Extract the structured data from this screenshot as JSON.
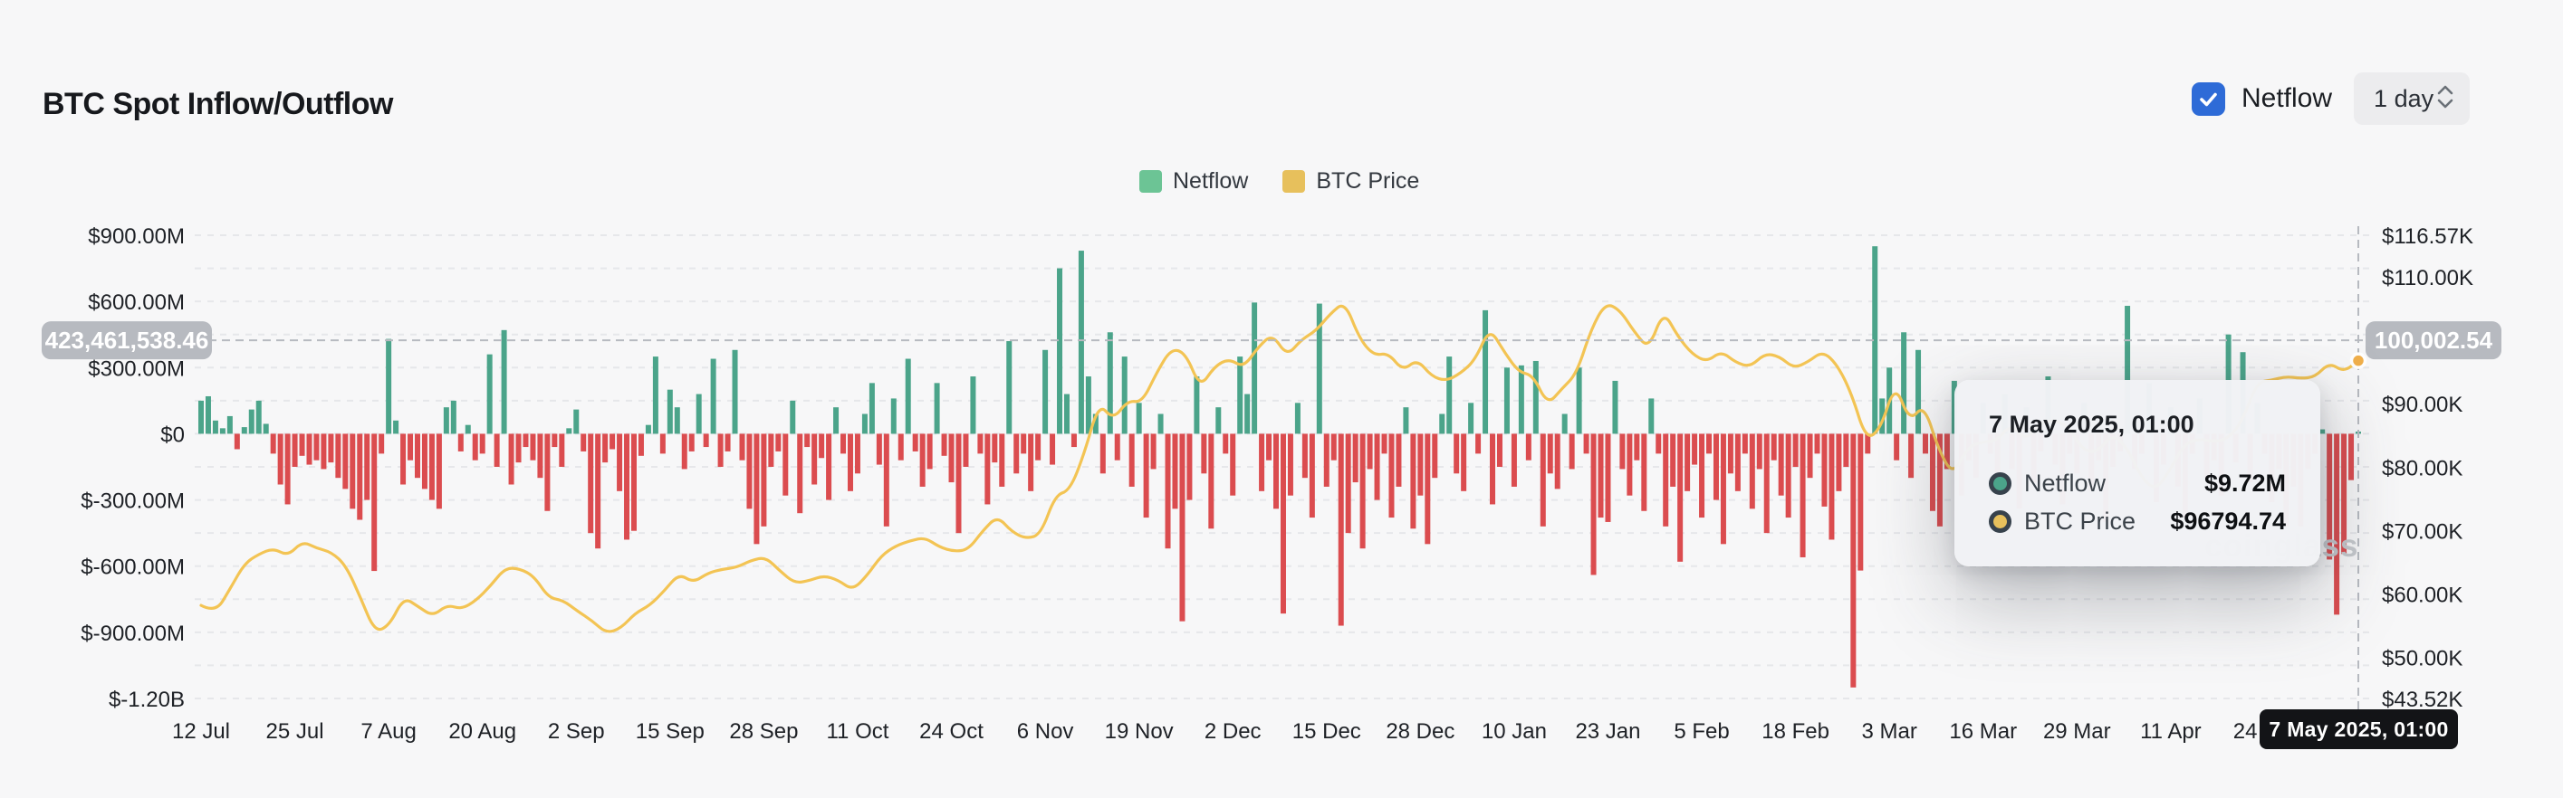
{
  "header": {
    "title": "BTC Spot Inflow/Outflow",
    "netflow_label": "Netflow",
    "interval_value": "1 day"
  },
  "legend": [
    {
      "label": "Netflow",
      "color": "#6CC495"
    },
    {
      "label": "BTC Price",
      "color": "#E7C05C"
    }
  ],
  "colors": {
    "background": "#f7f7f8",
    "gridline": "#e6e7ea",
    "bar_positive": "#4BA48A",
    "bar_negative": "#DB4C4F",
    "price_line": "#F3C454",
    "price_dot": "#F0AF4B",
    "axis_text": "#1e2126",
    "crosshair": "#b7bac0",
    "crosshair_badge_bg": "#b7bac0",
    "checkbox_blue": "#2E6BD7",
    "tooltip_marker_ring": "#37424c"
  },
  "chart_data": {
    "type": "bar+line",
    "title": "BTC Spot Inflow/Outflow",
    "legend_entries": [
      "Netflow",
      "BTC Price"
    ],
    "x_axis_labels": [
      "12 Jul",
      "25 Jul",
      "7 Aug",
      "20 Aug",
      "2 Sep",
      "15 Sep",
      "28 Sep",
      "11 Oct",
      "24 Oct",
      "6 Nov",
      "19 Nov",
      "2 Dec",
      "15 Dec",
      "28 Dec",
      "10 Jan",
      "23 Jan",
      "5 Feb",
      "18 Feb",
      "3 Mar",
      "16 Mar",
      "29 Mar",
      "11 Apr",
      "24 Apr",
      "7 May"
    ],
    "left_axis": {
      "unit": "USD",
      "labels": [
        {
          "text": "$900.00M",
          "value": 900
        },
        {
          "text": "$600.00M",
          "value": 600
        },
        {
          "text": "$300.00M",
          "value": 300
        },
        {
          "text": "$0",
          "value": 0
        },
        {
          "text": "$-300.00M",
          "value": -300
        },
        {
          "text": "$-600.00M",
          "value": -600
        },
        {
          "text": "$-900.00M",
          "value": -900
        },
        {
          "text": "$-1.20B",
          "value": -1200
        }
      ],
      "max": 900,
      "min": -1200,
      "gridline_step": 150
    },
    "right_axis": {
      "unit": "USD (K)",
      "labels": [
        {
          "text": "$116.57K",
          "value": 116.57
        },
        {
          "text": "$110.00K",
          "value": 110
        },
        {
          "text": "$90.00K",
          "value": 90
        },
        {
          "text": "$80.00K",
          "value": 80
        },
        {
          "text": "$70.00K",
          "value": 70
        },
        {
          "text": "$60.00K",
          "value": 60
        },
        {
          "text": "$50.00K",
          "value": 50
        },
        {
          "text": "$43.52K",
          "value": 43.52
        }
      ],
      "max": 116.57,
      "min": 43.52
    },
    "series": [
      {
        "name": "Netflow",
        "type": "bar",
        "unit": "million USD",
        "values": [
          150,
          170,
          60,
          25,
          80,
          -70,
          30,
          110,
          150,
          45,
          -90,
          -230,
          -320,
          -150,
          -100,
          -140,
          -120,
          -160,
          -130,
          -200,
          -250,
          -340,
          -390,
          -300,
          -622,
          -90,
          430,
          60,
          -230,
          -120,
          -200,
          -250,
          -300,
          -340,
          120,
          150,
          -80,
          40,
          -120,
          -90,
          360,
          -150,
          470,
          -230,
          -130,
          -60,
          -120,
          -200,
          -350,
          -60,
          -150,
          25,
          110,
          -80,
          -450,
          -520,
          -130,
          -70,
          -260,
          -480,
          -440,
          -100,
          40,
          350,
          -90,
          200,
          120,
          -160,
          -80,
          180,
          -60,
          340,
          -150,
          -80,
          380,
          -120,
          -340,
          -500,
          -420,
          -150,
          -80,
          -280,
          150,
          -360,
          -60,
          -230,
          -110,
          -300,
          120,
          -90,
          -260,
          -180,
          90,
          230,
          -140,
          -420,
          160,
          -120,
          340,
          -80,
          -240,
          -160,
          230,
          -100,
          -220,
          -450,
          -150,
          260,
          -90,
          -320,
          -130,
          -240,
          420,
          -180,
          -90,
          -260,
          -120,
          380,
          -140,
          750,
          180,
          -60,
          830,
          260,
          90,
          -180,
          460,
          -120,
          350,
          -240,
          140,
          -380,
          -160,
          90,
          -520,
          -340,
          -850,
          -300,
          260,
          -180,
          -430,
          120,
          -90,
          -280,
          350,
          180,
          595,
          -260,
          -120,
          -340,
          -815,
          -280,
          140,
          -200,
          -380,
          590,
          -240,
          -120,
          -870,
          -450,
          -220,
          -520,
          -160,
          -300,
          -90,
          -380,
          -240,
          120,
          -430,
          -280,
          -500,
          -200,
          90,
          350,
          -180,
          -260,
          140,
          -90,
          560,
          -320,
          -150,
          300,
          -240,
          310,
          -120,
          330,
          -420,
          -180,
          -250,
          90,
          -160,
          300,
          -90,
          -640,
          -380,
          -400,
          240,
          -160,
          -280,
          -120,
          -350,
          160,
          -90,
          -420,
          -240,
          -580,
          -260,
          -140,
          -380,
          -90,
          -300,
          -500,
          -180,
          -260,
          -90,
          -340,
          -160,
          -450,
          -120,
          -280,
          -380,
          -150,
          -560,
          -200,
          -90,
          -330,
          -480,
          -260,
          -150,
          -1150,
          -620,
          -90,
          850,
          160,
          300,
          -120,
          460,
          -200,
          380,
          -90,
          -350,
          -420,
          -160,
          240,
          -280,
          -120,
          -200,
          140,
          -90,
          -260,
          180,
          -160,
          -340,
          120,
          -220,
          -80,
          260,
          -140,
          -320,
          -90,
          -180,
          140,
          -260,
          -120,
          -400,
          -150,
          -80,
          580,
          -160,
          -90,
          230,
          -310,
          -140,
          120,
          -240,
          -380,
          -90,
          160,
          -200,
          -120,
          -280,
          450,
          -130,
          370,
          -220,
          140,
          -90,
          -310,
          -160,
          -420,
          -240,
          -420,
          -160,
          -90,
          20,
          -570,
          -820,
          -545,
          -210,
          9.72
        ]
      },
      {
        "name": "BTC Price",
        "type": "line",
        "unit": "thousand USD",
        "values": [
          58.2,
          57.0,
          60.8,
          64.8,
          66.3,
          67.2,
          66.0,
          68.3,
          67.2,
          66.6,
          64.5,
          59.5,
          54.0,
          55.0,
          59.5,
          58.0,
          56.5,
          58.3,
          57.6,
          59.0,
          61.3,
          64.1,
          64.0,
          62.8,
          59.4,
          59.0,
          57.3,
          55.8,
          53.8,
          54.6,
          57.0,
          58.2,
          60.5,
          63.2,
          61.8,
          63.3,
          63.9,
          64.2,
          65.3,
          65.8,
          63.6,
          61.7,
          62.1,
          62.9,
          62.2,
          60.6,
          62.9,
          66.1,
          67.6,
          68.4,
          68.9,
          67.4,
          66.7,
          67.0,
          70.0,
          72.3,
          69.8,
          68.7,
          69.4,
          75.6,
          76.3,
          82.1,
          90.1,
          87.5,
          90.5,
          90.2,
          94.9,
          98.7,
          98.0,
          92.5,
          95.9,
          97.1,
          95.7,
          98.9,
          101.0,
          97.5,
          100.1,
          101.5,
          104.2,
          106.1,
          100.3,
          97.6,
          98.0,
          95.2,
          97.0,
          94.3,
          93.6,
          94.8,
          96.9,
          102.0,
          98.2,
          95.0,
          94.5,
          89.8,
          92.4,
          94.7,
          101.7,
          105.9,
          104.8,
          101.3,
          98.6,
          104.7,
          100.6,
          97.8,
          96.6,
          98.3,
          96.5,
          95.8,
          97.9,
          97.5,
          95.6,
          96.6,
          98.3,
          96.2,
          91.6,
          84.3,
          86.0,
          93.2,
          87.2,
          89.9,
          82.8,
          78.7,
          83.1,
          84.0,
          84.1,
          86.8,
          84.2,
          86.9,
          87.5,
          86.3,
          82.6,
          82.4,
          85.2,
          83.2,
          78.4,
          76.3,
          79.6,
          83.7,
          84.5,
          84.0,
          84.5,
          87.3,
          93.4,
          93.7,
          94.3,
          94.0,
          94.2,
          96.5,
          95.0,
          96.79
        ]
      }
    ],
    "crosshair": {
      "left_badge": "423,461,538.46",
      "right_badge": "100,002.54",
      "h_line_value_musd": 423.461538,
      "price_dot_kusd": 96.79
    },
    "tooltip": {
      "title": "7 May 2025, 01:00",
      "rows": [
        {
          "label": "Netflow",
          "value": "$9.72M",
          "color": "#4BA48A"
        },
        {
          "label": "BTC Price",
          "value": "$96794.74",
          "color": "#E7C05C"
        }
      ]
    },
    "x_axis_tooltip": "7 May 2025, 01:00",
    "watermark": "coinglass",
    "layout": {
      "grid": true,
      "legend_position": "top-center"
    }
  }
}
